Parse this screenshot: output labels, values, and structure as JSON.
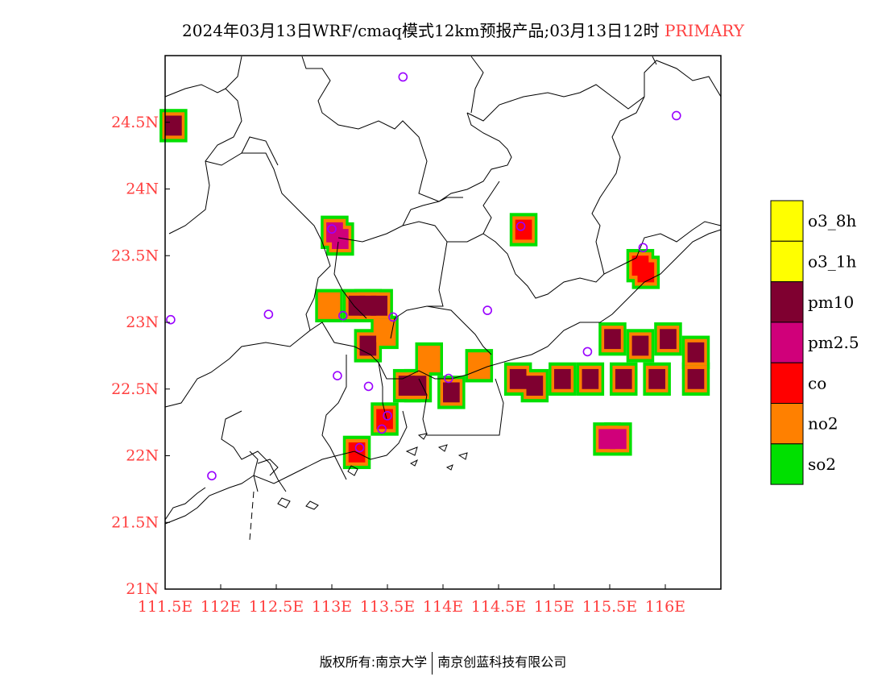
{
  "title": {
    "main": "2024年03月13日WRF/cmaq模式12km预报产品;03月13日12时",
    "tag": "PRIMARY",
    "tag_color": "#ff4040"
  },
  "map": {
    "lon_range": [
      111.5,
      116.5
    ],
    "lat_range": [
      21.0,
      25.0
    ],
    "x_ticks": [
      {
        "value": 111.5,
        "label": "111.5E"
      },
      {
        "value": 112.0,
        "label": "112E"
      },
      {
        "value": 112.5,
        "label": "112.5E"
      },
      {
        "value": 113.0,
        "label": "113E"
      },
      {
        "value": 113.5,
        "label": "113.5E"
      },
      {
        "value": 114.0,
        "label": "114E"
      },
      {
        "value": 114.5,
        "label": "114.5E"
      },
      {
        "value": 115.0,
        "label": "115E"
      },
      {
        "value": 115.5,
        "label": "115.5E"
      },
      {
        "value": 116.0,
        "label": "116E"
      }
    ],
    "y_ticks": [
      {
        "value": 21.0,
        "label": "21N"
      },
      {
        "value": 21.5,
        "label": "21.5N"
      },
      {
        "value": 22.0,
        "label": "22N"
      },
      {
        "value": 22.5,
        "label": "22.5N"
      },
      {
        "value": 23.0,
        "label": "23N"
      },
      {
        "value": 23.5,
        "label": "23.5N"
      },
      {
        "value": 24.0,
        "label": "24N"
      },
      {
        "value": 24.5,
        "label": "24.5N"
      }
    ],
    "tick_label_color": "#ff4040",
    "stations": [
      {
        "lon": 113.64,
        "lat": 24.84
      },
      {
        "lon": 116.1,
        "lat": 24.55
      },
      {
        "lon": 113.0,
        "lat": 23.7
      },
      {
        "lon": 114.7,
        "lat": 23.72
      },
      {
        "lon": 115.8,
        "lat": 23.56
      },
      {
        "lon": 111.55,
        "lat": 23.02
      },
      {
        "lon": 112.43,
        "lat": 23.06
      },
      {
        "lon": 113.1,
        "lat": 23.05
      },
      {
        "lon": 113.55,
        "lat": 23.04
      },
      {
        "lon": 114.4,
        "lat": 23.09
      },
      {
        "lon": 115.3,
        "lat": 22.78
      },
      {
        "lon": 113.05,
        "lat": 22.6
      },
      {
        "lon": 113.33,
        "lat": 22.52
      },
      {
        "lon": 114.05,
        "lat": 22.58
      },
      {
        "lon": 113.5,
        "lat": 22.3
      },
      {
        "lon": 113.45,
        "lat": 22.2
      },
      {
        "lon": 113.25,
        "lat": 22.06
      },
      {
        "lon": 111.92,
        "lat": 21.85
      }
    ],
    "station_color": "#9900ff",
    "pollutant_patches": [
      {
        "pollutant": "pm10",
        "cells": [
          [
            111.55,
            24.5
          ]
        ]
      },
      {
        "pollutant": "pm2.5",
        "cells": [
          [
            113.0,
            23.7
          ],
          [
            113.05,
            23.65
          ]
        ]
      },
      {
        "pollutant": "pm10",
        "cells": [
          [
            113.2,
            23.15
          ],
          [
            113.3,
            23.15
          ],
          [
            113.4,
            23.15
          ],
          [
            113.3,
            22.85
          ],
          [
            113.65,
            22.55
          ],
          [
            113.75,
            22.55
          ],
          [
            114.05,
            22.5
          ],
          [
            114.65,
            22.6
          ],
          [
            114.8,
            22.55
          ]
        ]
      },
      {
        "pollutant": "pm10",
        "cells": [
          [
            115.5,
            22.9
          ],
          [
            115.75,
            22.85
          ],
          [
            116.0,
            22.9
          ],
          [
            116.25,
            22.8
          ],
          [
            115.3,
            22.6
          ],
          [
            115.6,
            22.6
          ],
          [
            115.9,
            22.6
          ],
          [
            116.25,
            22.6
          ],
          [
            115.05,
            22.6
          ]
        ]
      },
      {
        "pollutant": "pm2.5",
        "cells": [
          [
            115.45,
            22.15
          ],
          [
            115.55,
            22.15
          ]
        ]
      },
      {
        "pollutant": "co",
        "cells": [
          [
            114.7,
            23.72
          ],
          [
            115.75,
            23.45
          ],
          [
            115.8,
            23.4
          ],
          [
            113.45,
            22.3
          ],
          [
            113.2,
            22.05
          ]
        ]
      },
      {
        "pollutant": "no2",
        "cells": [
          [
            112.95,
            23.15
          ],
          [
            113.45,
            22.95
          ],
          [
            113.85,
            22.75
          ],
          [
            114.3,
            22.7
          ]
        ]
      }
    ]
  },
  "legend": {
    "items": [
      {
        "label": "o3_8h",
        "color": "#ffff00"
      },
      {
        "label": "o3_1h",
        "color": "#ffff00"
      },
      {
        "label": "pm10",
        "color": "#7f0030"
      },
      {
        "label": "pm2.5",
        "color": "#d0007a"
      },
      {
        "label": "co",
        "color": "#ff0000"
      },
      {
        "label": "no2",
        "color": "#ff8000"
      },
      {
        "label": "so2",
        "color": "#00e000"
      }
    ]
  },
  "footer": {
    "left": "版权所有:南京大学",
    "right": "南京创蓝科技有限公司"
  }
}
